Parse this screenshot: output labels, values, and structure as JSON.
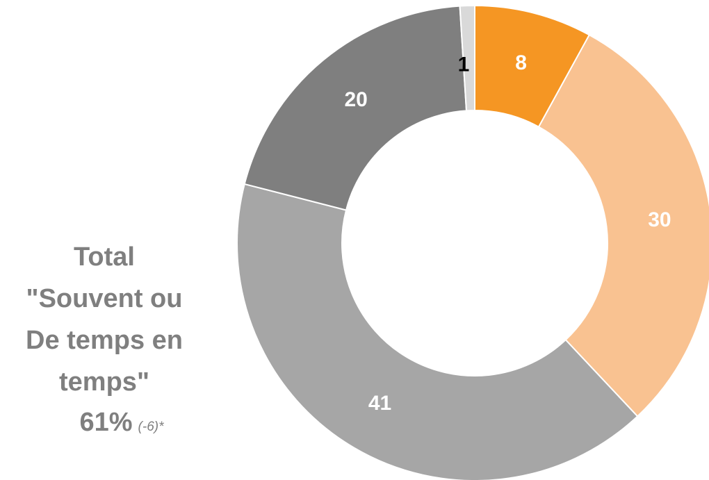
{
  "chart_data": {
    "type": "pie",
    "donut": true,
    "slices": [
      {
        "value": 8,
        "label": "8",
        "color": "#F59623",
        "label_color": "#FFFFFF"
      },
      {
        "value": 30,
        "label": "30",
        "color": "#F9C291",
        "label_color": "#FFFFFF"
      },
      {
        "value": 41,
        "label": "41",
        "color": "#A6A6A6",
        "label_color": "#FFFFFF"
      },
      {
        "value": 20,
        "label": "20",
        "color": "#7F7F7F",
        "label_color": "#FFFFFF"
      },
      {
        "value": 1,
        "label": "1",
        "color": "#D9D9D9",
        "label_color": "#000000"
      }
    ],
    "start": "top",
    "direction": "clockwise"
  },
  "summary": {
    "heading_lines": [
      "Total",
      "\"Souvent ou",
      "De temps en",
      "temps\""
    ],
    "value": "61%",
    "change": "(-6)*"
  }
}
